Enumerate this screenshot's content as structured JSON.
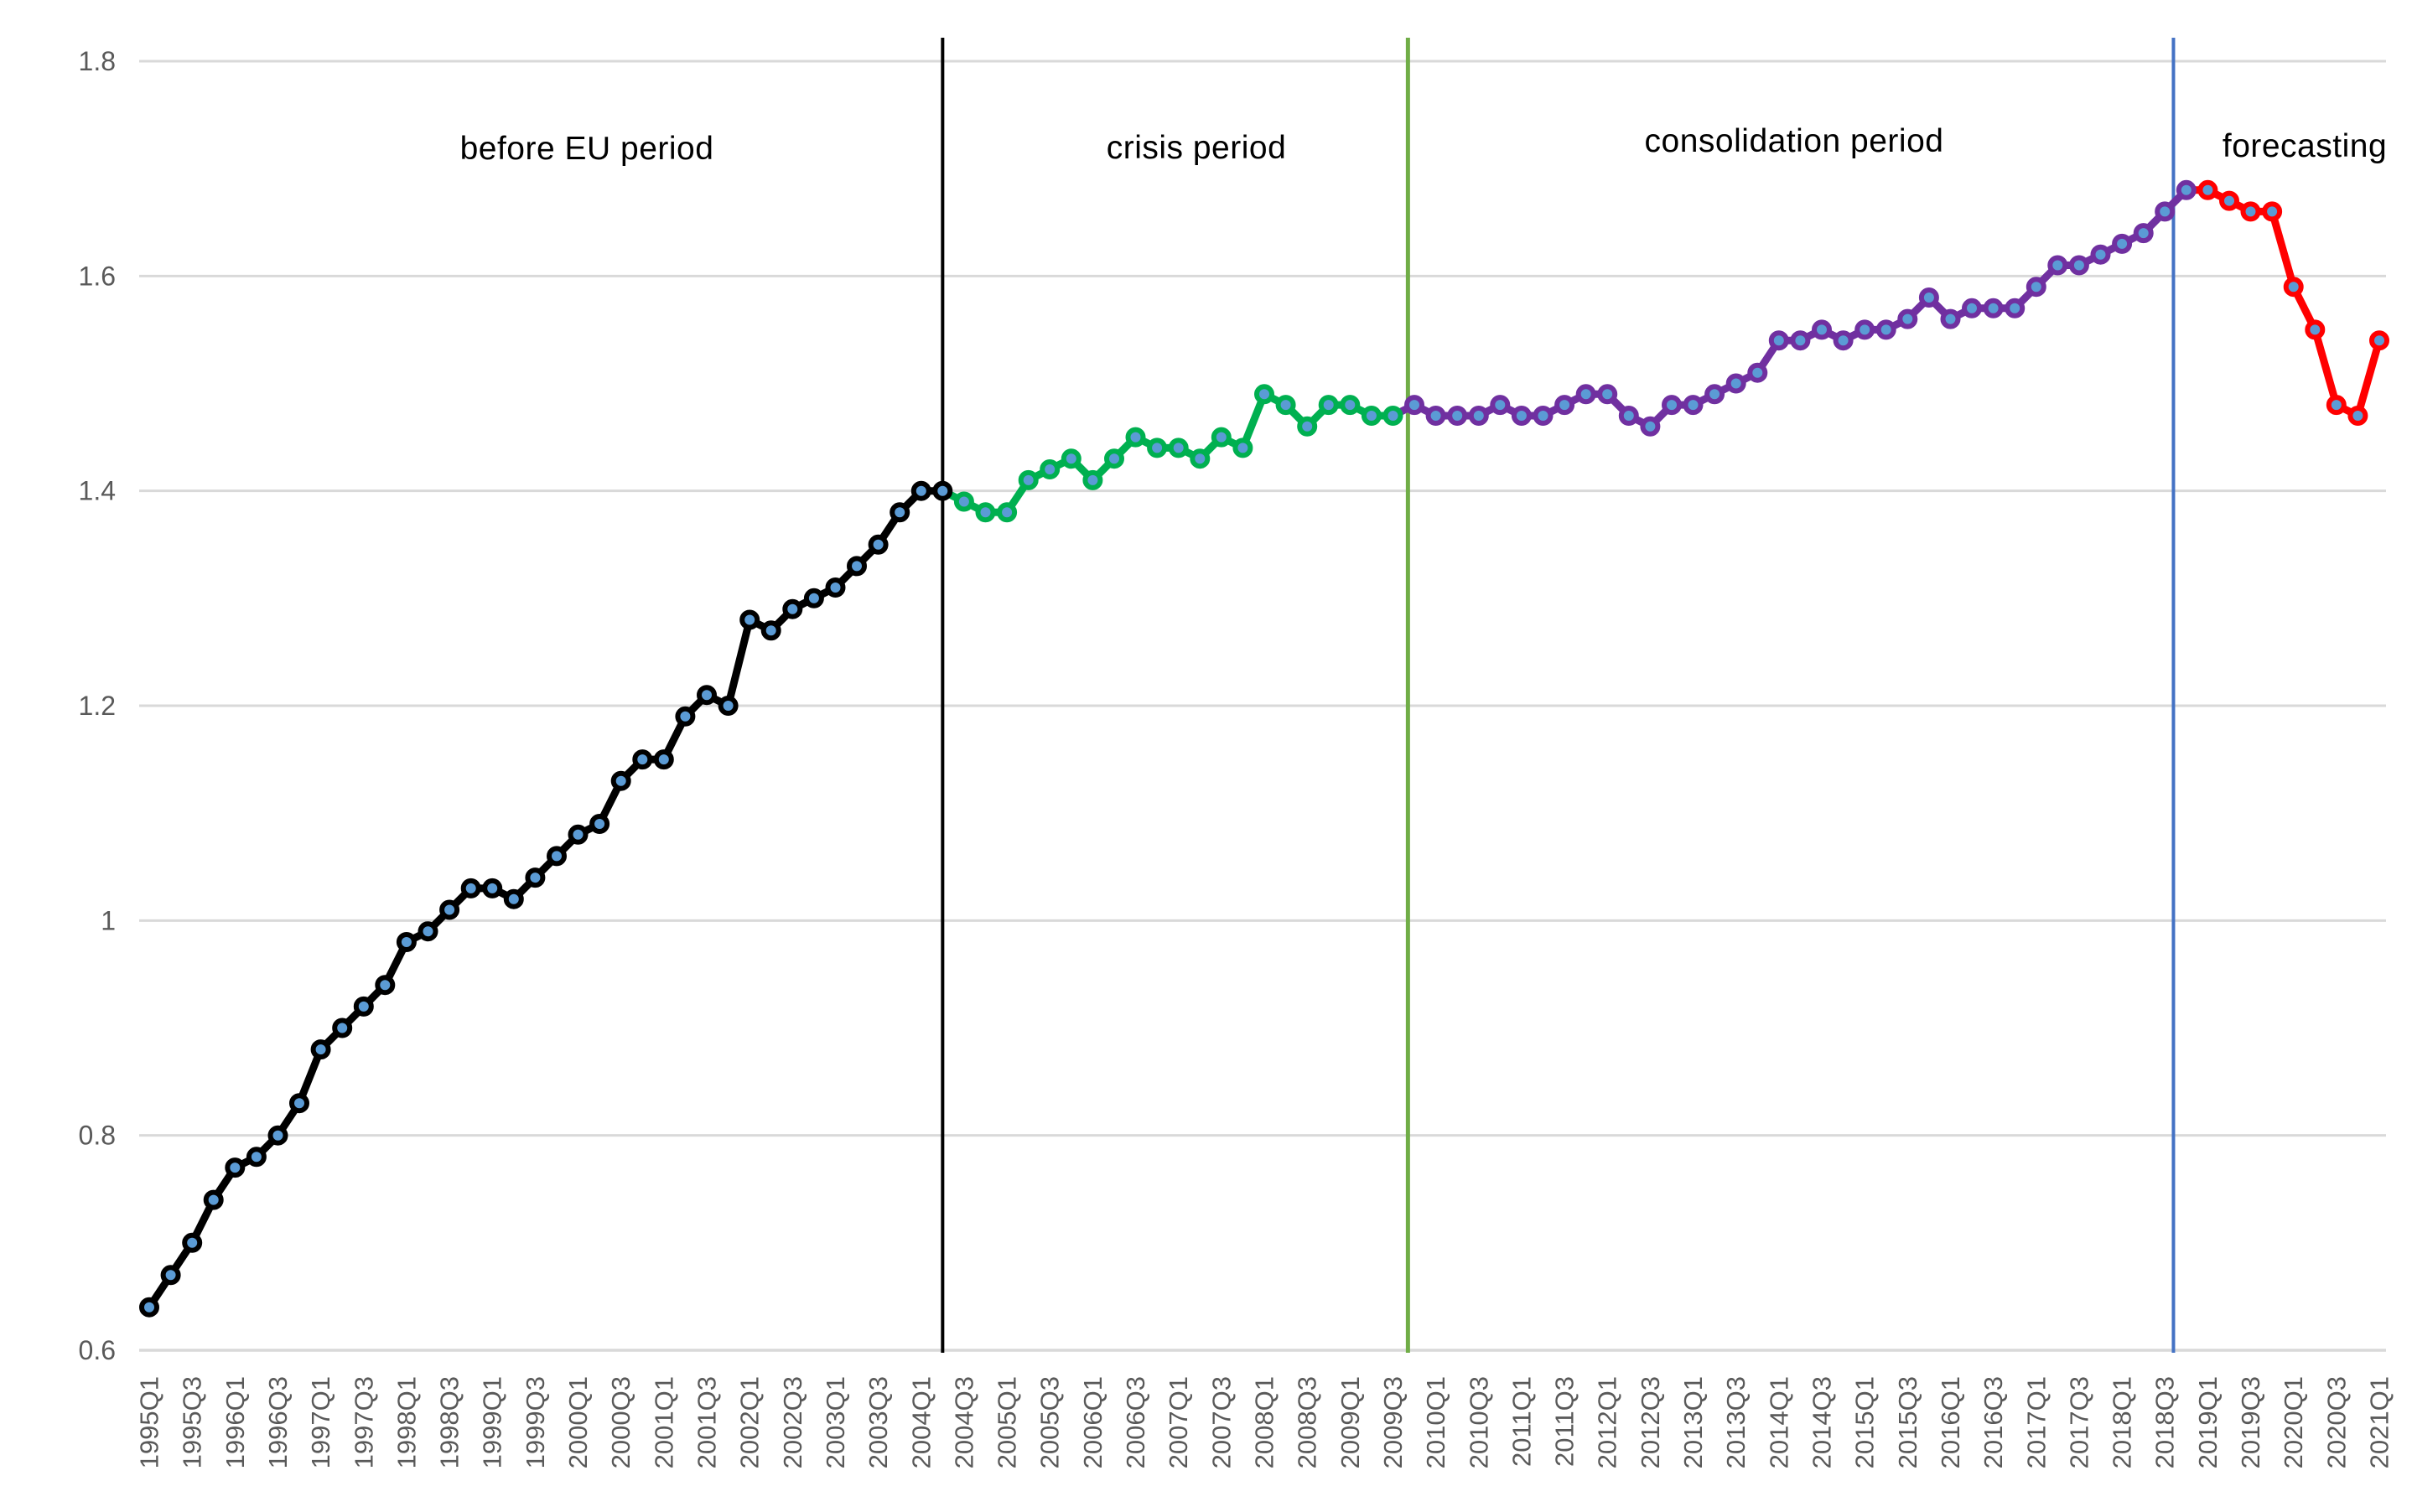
{
  "chart_data": {
    "type": "line",
    "title": "",
    "xlabel": "",
    "ylabel": "",
    "grid": "horizontal-only",
    "legend_position": "none",
    "background_color": "#ffffff",
    "gridline_color": "#d9d9d9",
    "tick_label_color": "#595959",
    "marker_fill_color": "#5b9bd5",
    "x_axis": {
      "first_quarter": "1995Q1",
      "last_quarter": "2021Q1",
      "total_points": 105,
      "tick_labels": [
        "1995Q1",
        "1995Q3",
        "1996Q1",
        "1996Q3",
        "1997Q1",
        "1997Q3",
        "1998Q1",
        "1998Q3",
        "1999Q1",
        "1999Q3",
        "2000Q1",
        "2000Q3",
        "2001Q1",
        "2001Q3",
        "2002Q1",
        "2002Q3",
        "2003Q1",
        "2003Q3",
        "2004Q1",
        "2004Q3",
        "2005Q1",
        "2005Q3",
        "2006Q1",
        "2006Q3",
        "2007Q1",
        "2007Q3",
        "2008Q1",
        "2008Q3",
        "2009Q1",
        "2009Q3",
        "2010Q1",
        "2010Q3",
        "2011Q1",
        "2011Q3",
        "2012Q1",
        "2012Q3",
        "2013Q1",
        "2013Q3",
        "2014Q1",
        "2014Q3",
        "2015Q1",
        "2015Q3",
        "2016Q1",
        "2016Q3",
        "2017Q1",
        "2017Q3",
        "2018Q1",
        "2018Q3",
        "2019Q1",
        "2019Q3",
        "2020Q1",
        "2020Q3",
        "2021Q1"
      ]
    },
    "y_axis": {
      "min": 0.6,
      "max": 1.8,
      "step": 0.2,
      "tick_labels": [
        "1.8",
        "1.6",
        "1.4",
        "1.2",
        "1",
        "0.8",
        "0.6"
      ]
    },
    "series": [
      {
        "name": "before EU period",
        "color": "#000000",
        "start_quarter": "1995Q1",
        "start_index": 0,
        "values": [
          0.64,
          0.67,
          0.7,
          0.74,
          0.77,
          0.78,
          0.8,
          0.83,
          0.88,
          0.9,
          0.92,
          0.94,
          0.98,
          0.99,
          1.01,
          1.03,
          1.03,
          1.02,
          1.04,
          1.06,
          1.08,
          1.09,
          1.13,
          1.15,
          1.15,
          1.19,
          1.21,
          1.2,
          1.28,
          1.27,
          1.29,
          1.3,
          1.31,
          1.33,
          1.35,
          1.38,
          1.4,
          1.4
        ]
      },
      {
        "name": "crisis period",
        "color": "#00b050",
        "start_quarter": "2004Q3",
        "start_index": 38,
        "values": [
          1.39,
          1.38,
          1.38,
          1.41,
          1.42,
          1.43,
          1.41,
          1.43,
          1.45,
          1.44,
          1.44,
          1.43,
          1.45,
          1.44,
          1.49,
          1.48,
          1.46,
          1.48,
          1.48,
          1.47,
          1.47
        ]
      },
      {
        "name": "consolidation period",
        "color": "#7030a0",
        "start_quarter": "2009Q4",
        "start_index": 59,
        "values": [
          1.48,
          1.47,
          1.47,
          1.47,
          1.48,
          1.47,
          1.47,
          1.48,
          1.49,
          1.49,
          1.47,
          1.46,
          1.48,
          1.48,
          1.49,
          1.5,
          1.51,
          1.54,
          1.54,
          1.55,
          1.54,
          1.55,
          1.55,
          1.56,
          1.58,
          1.56,
          1.57,
          1.57,
          1.57,
          1.59,
          1.61,
          1.61,
          1.62,
          1.63,
          1.64,
          1.66,
          1.68
        ]
      },
      {
        "name": "forecasting",
        "color": "#ff0000",
        "start_quarter": "2019Q1",
        "start_index": 96,
        "values": [
          1.68,
          1.67,
          1.66,
          1.66,
          1.59,
          1.55,
          1.48,
          1.47,
          1.54
        ]
      }
    ],
    "separators": [
      {
        "name": "black-separator",
        "color": "#000000",
        "position_index": 37,
        "after_quarter": "2004Q2",
        "width": 4
      },
      {
        "name": "green-separator",
        "color": "#70ad47",
        "position_index": 58.7,
        "after_quarter": "2009Q3",
        "width": 5
      },
      {
        "name": "blue-separator",
        "color": "#4472c4",
        "position_index": 94.4,
        "after_quarter": "2018Q3",
        "width": 4
      }
    ],
    "annotations": [
      {
        "text": "before EU period",
        "x": 700,
        "y": 178
      },
      {
        "text": "crisis period",
        "x": 1427,
        "y": 177
      },
      {
        "text": "consolidation period",
        "x": 2140,
        "y": 169
      },
      {
        "text": "forecasting",
        "x": 2749,
        "y": 175
      }
    ]
  }
}
